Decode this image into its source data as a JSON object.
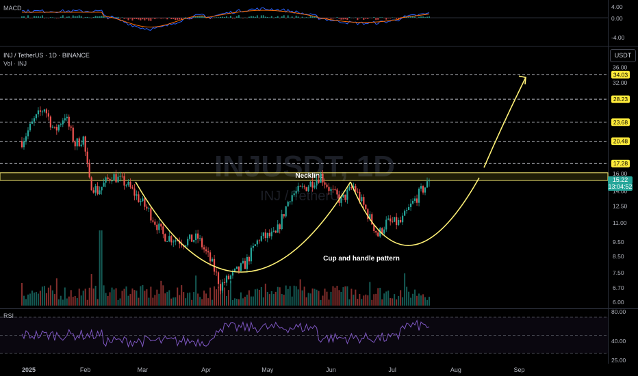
{
  "header": {
    "macd_label": "MACD",
    "symbol_title": "INJ / TetherUS · 1D · BINANCE",
    "vol_label": "Vol · INJ",
    "rsi_label": "RSI",
    "currency_button": "USDT"
  },
  "watermark": {
    "big": "INJUSDT, 1D",
    "small": "INJ / TetherUS"
  },
  "annotations": {
    "neckline": "Neckline",
    "pattern": "Cup and handle pattern"
  },
  "colors": {
    "up": "#26a69a",
    "down": "#ef5350",
    "yellow": "#fff176",
    "tag_bg": "#ffeb3b",
    "macd": "#2962ff",
    "signal": "#ff6d00",
    "rsi": "#7e57c2"
  },
  "macd_axis": [
    "4.00",
    "0.00",
    "-4.00"
  ],
  "rsi_axis": [
    "80.00",
    "40.00",
    "25.00"
  ],
  "last_price": {
    "value": "15.22",
    "countdown": "13:04:52"
  },
  "chart_data": {
    "type": "candlestick",
    "title": "INJ / TetherUS · 1D · BINANCE",
    "x_labels": [
      "2025",
      "Feb",
      "Mar",
      "Apr",
      "May",
      "Jun",
      "Jul",
      "Aug",
      "Sep"
    ],
    "y_ticks": [
      "36.00",
      "32.00",
      "16.00",
      "14.00",
      "12.50",
      "11.00",
      "9.50",
      "8.50",
      "7.50",
      "6.70",
      "6.00"
    ],
    "y_scale": "log",
    "target_levels": [
      "34.03",
      "28.23",
      "23.68",
      "20.48",
      "17.28"
    ],
    "neckline_zone": [
      15.2,
      16.1
    ],
    "price_path": [
      {
        "date": "2025-01-01",
        "close": 20.5
      },
      {
        "date": "2025-01-07",
        "close": 24.0
      },
      {
        "date": "2025-01-12",
        "close": 26.5
      },
      {
        "date": "2025-01-17",
        "close": 22.0
      },
      {
        "date": "2025-01-22",
        "close": 25.0
      },
      {
        "date": "2025-01-27",
        "close": 20.0
      },
      {
        "date": "2025-01-31",
        "close": 21.0
      },
      {
        "date": "2025-02-03",
        "close": 15.0
      },
      {
        "date": "2025-02-07",
        "close": 14.0
      },
      {
        "date": "2025-02-14",
        "close": 15.8
      },
      {
        "date": "2025-02-21",
        "close": 14.8
      },
      {
        "date": "2025-02-26",
        "close": 13.5
      },
      {
        "date": "2025-03-04",
        "close": 12.0
      },
      {
        "date": "2025-03-11",
        "close": 10.0
      },
      {
        "date": "2025-03-21",
        "close": 9.5
      },
      {
        "date": "2025-03-28",
        "close": 9.8
      },
      {
        "date": "2025-04-04",
        "close": 8.0
      },
      {
        "date": "2025-04-08",
        "close": 6.8
      },
      {
        "date": "2025-04-12",
        "close": 7.2
      },
      {
        "date": "2025-04-20",
        "close": 8.0
      },
      {
        "date": "2025-04-27",
        "close": 9.8
      },
      {
        "date": "2025-05-05",
        "close": 10.0
      },
      {
        "date": "2025-05-12",
        "close": 13.5
      },
      {
        "date": "2025-05-20",
        "close": 14.5
      },
      {
        "date": "2025-05-27",
        "close": 15.8
      },
      {
        "date": "2025-06-01",
        "close": 14.0
      },
      {
        "date": "2025-06-06",
        "close": 13.0
      },
      {
        "date": "2025-06-12",
        "close": 14.5
      },
      {
        "date": "2025-06-17",
        "close": 12.5
      },
      {
        "date": "2025-06-24",
        "close": 10.0
      },
      {
        "date": "2025-06-28",
        "close": 11.0
      },
      {
        "date": "2025-07-05",
        "close": 11.0
      },
      {
        "date": "2025-07-10",
        "close": 12.5
      },
      {
        "date": "2025-07-15",
        "close": 14.0
      },
      {
        "date": "2025-07-20",
        "close": 15.22
      }
    ],
    "projection_target": 34.03
  }
}
